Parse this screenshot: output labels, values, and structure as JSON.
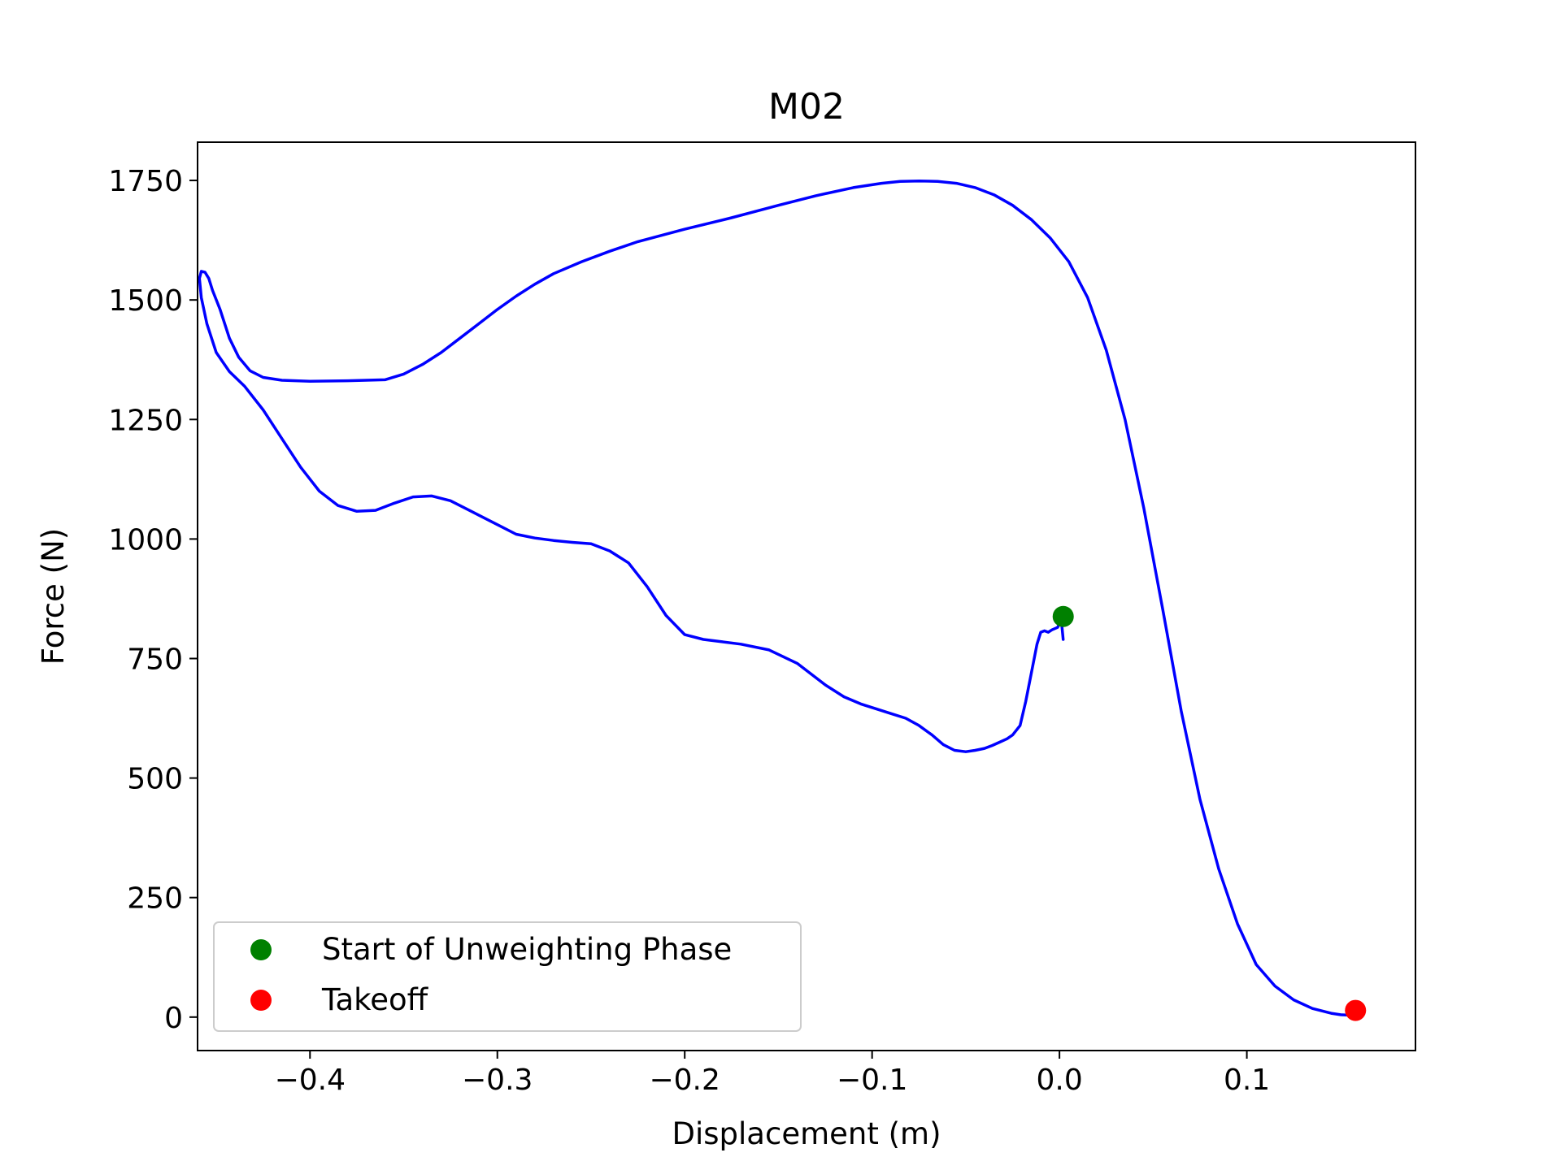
{
  "chart_data": {
    "type": "line",
    "title": "M02",
    "xlabel": "Displacement (m)",
    "ylabel": "Force (N)",
    "xlim": [
      -0.46,
      0.19
    ],
    "ylim": [
      -70,
      1830
    ],
    "xticks": [
      -0.4,
      -0.3,
      -0.2,
      -0.1,
      0.0,
      0.1
    ],
    "xtick_labels": [
      "−0.4",
      "−0.3",
      "−0.2",
      "−0.1",
      "0.0",
      "0.1"
    ],
    "yticks": [
      0,
      250,
      500,
      750,
      1000,
      1250,
      1500,
      1750
    ],
    "ytick_labels": [
      "0",
      "250",
      "500",
      "750",
      "1000",
      "1250",
      "1500",
      "1750"
    ],
    "grid": false,
    "legend_position": "lower-left",
    "series": [
      {
        "color": "#0000ff",
        "x": [
          0.002,
          0.001,
          -0.001,
          -0.004,
          -0.006,
          -0.008,
          -0.01,
          -0.012,
          -0.015,
          -0.018,
          -0.021,
          -0.025,
          -0.028,
          -0.032,
          -0.036,
          -0.04,
          -0.045,
          -0.05,
          -0.056,
          -0.062,
          -0.068,
          -0.075,
          -0.082,
          -0.09,
          -0.098,
          -0.106,
          -0.115,
          -0.125,
          -0.14,
          -0.155,
          -0.17,
          -0.18,
          -0.19,
          -0.2,
          -0.21,
          -0.22,
          -0.23,
          -0.24,
          -0.25,
          -0.26,
          -0.27,
          -0.28,
          -0.29,
          -0.3,
          -0.315,
          -0.325,
          -0.335,
          -0.345,
          -0.355,
          -0.365,
          -0.375,
          -0.385,
          -0.395,
          -0.405,
          -0.415,
          -0.425,
          -0.435,
          -0.443,
          -0.45,
          -0.455,
          -0.458,
          -0.459,
          -0.458,
          -0.456,
          -0.454,
          -0.452,
          -0.448,
          -0.443,
          -0.438,
          -0.432,
          -0.425,
          -0.415,
          -0.4,
          -0.38,
          -0.36,
          -0.35,
          -0.34,
          -0.33,
          -0.32,
          -0.31,
          -0.3,
          -0.29,
          -0.28,
          -0.27,
          -0.255,
          -0.24,
          -0.225,
          -0.2,
          -0.175,
          -0.15,
          -0.13,
          -0.11,
          -0.095,
          -0.085,
          -0.075,
          -0.065,
          -0.055,
          -0.045,
          -0.035,
          -0.025,
          -0.015,
          -0.005,
          0.005,
          0.015,
          0.025,
          0.035,
          0.045,
          0.055,
          0.065,
          0.075,
          0.085,
          0.095,
          0.105,
          0.115,
          0.125,
          0.135,
          0.145,
          0.15,
          0.155,
          0.158
        ],
        "y": [
          790,
          830,
          815,
          810,
          805,
          808,
          805,
          780,
          720,
          660,
          610,
          590,
          582,
          575,
          568,
          562,
          558,
          555,
          558,
          570,
          590,
          610,
          625,
          635,
          645,
          655,
          670,
          695,
          740,
          768,
          780,
          785,
          790,
          800,
          840,
          900,
          950,
          975,
          990,
          993,
          997,
          1002,
          1010,
          1030,
          1060,
          1080,
          1090,
          1088,
          1075,
          1060,
          1058,
          1070,
          1100,
          1150,
          1210,
          1270,
          1320,
          1350,
          1390,
          1450,
          1505,
          1545,
          1560,
          1558,
          1545,
          1520,
          1480,
          1420,
          1380,
          1352,
          1338,
          1332,
          1330,
          1331,
          1333,
          1345,
          1365,
          1390,
          1420,
          1450,
          1480,
          1508,
          1533,
          1555,
          1580,
          1602,
          1622,
          1648,
          1672,
          1698,
          1718,
          1735,
          1744,
          1748,
          1749,
          1748,
          1744,
          1735,
          1720,
          1698,
          1668,
          1630,
          1580,
          1505,
          1395,
          1250,
          1065,
          855,
          640,
          455,
          310,
          195,
          110,
          65,
          36,
          18,
          8,
          5,
          4,
          4
        ]
      }
    ],
    "markers": [
      {
        "label": "Start of Unweighting Phase",
        "x": 0.002,
        "y": 838,
        "color": "#008000"
      },
      {
        "label": "Takeoff",
        "x": 0.158,
        "y": 14,
        "color": "#ff0000"
      }
    ]
  }
}
